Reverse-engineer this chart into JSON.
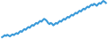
{
  "line_color": "#3a9ad9",
  "background_color": "#ffffff",
  "linewidth": 1.5,
  "y_values": [
    3.0,
    3.2,
    3.5,
    3.3,
    3.6,
    3.4,
    3.2,
    3.5,
    3.7,
    3.5,
    3.8,
    4.0,
    3.8,
    4.2,
    4.5,
    4.3,
    4.7,
    5.0,
    4.8,
    5.2,
    5.5,
    5.3,
    5.7,
    6.0,
    5.8,
    6.2,
    6.5,
    6.3,
    6.7,
    7.0,
    6.8,
    7.2,
    7.5,
    7.3,
    7.0,
    6.5,
    6.2,
    6.5,
    6.3,
    5.9,
    6.2,
    6.5,
    6.3,
    6.7,
    7.0,
    6.8,
    7.2,
    7.5,
    7.3,
    7.7,
    8.0,
    7.8,
    8.2,
    8.5,
    8.3,
    8.7,
    9.0,
    8.8,
    9.2,
    9.5,
    9.3,
    9.7,
    10.0,
    9.8,
    10.2,
    10.5,
    10.3,
    10.7,
    11.0,
    10.8,
    11.2,
    11.0,
    10.7,
    11.1,
    11.4,
    11.2,
    11.6,
    11.9,
    11.7,
    11.4
  ]
}
